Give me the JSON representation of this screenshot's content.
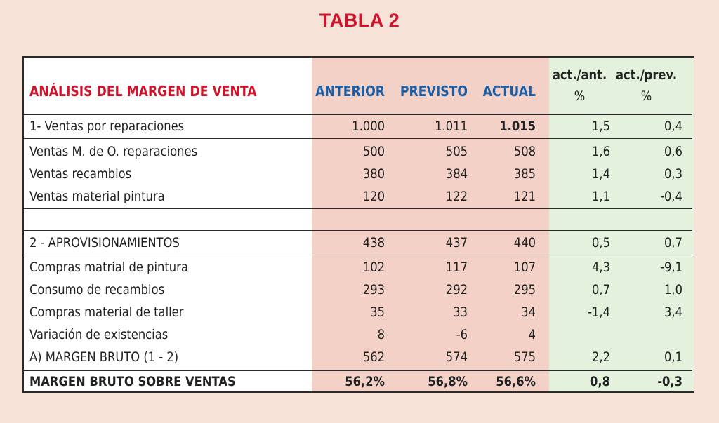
{
  "title": "TABLA 2",
  "header": {
    "label": "ANÁLISIS DEL MARGEN DE VENTA",
    "anterior": "ANTERIOR",
    "previsto": "PREVISTO",
    "actual": "ACTUAL",
    "act_ant": "act./ant.",
    "act_prev": "act./prev.",
    "pct_ant": "%",
    "pct_prev": "%"
  },
  "rows": [
    {
      "label": "1- Ventas por reparaciones",
      "anterior": "1.000",
      "previsto": "1.011",
      "actual": "1.015",
      "act_ant": "1,5",
      "act_prev": "0,4"
    },
    {
      "label": "Ventas M. de O. reparaciones",
      "anterior": "500",
      "previsto": "505",
      "actual": "508",
      "act_ant": "1,6",
      "act_prev": "0,6"
    },
    {
      "label": "Ventas recambios",
      "anterior": "380",
      "previsto": "384",
      "actual": "385",
      "act_ant": "1,4",
      "act_prev": "0,3"
    },
    {
      "label": "Ventas material pintura",
      "anterior": "120",
      "previsto": "122",
      "actual": "121",
      "act_ant": "1,1",
      "act_prev": "-0,4"
    },
    {
      "label": "2 - APROVISIONAMIENTOS",
      "anterior": "438",
      "previsto": "437",
      "actual": "440",
      "act_ant": "0,5",
      "act_prev": "0,7"
    },
    {
      "label": "Compras matrial de pintura",
      "anterior": "102",
      "previsto": "117",
      "actual": "107",
      "act_ant": "4,3",
      "act_prev": "-9,1"
    },
    {
      "label": "Consumo de recambios",
      "anterior": "293",
      "previsto": "292",
      "actual": "295",
      "act_ant": "0,7",
      "act_prev": "1,0"
    },
    {
      "label": "Compras material de taller",
      "anterior": "35",
      "previsto": "33",
      "actual": "34",
      "act_ant": "-1,4",
      "act_prev": "3,4"
    },
    {
      "label": "Variación de existencias",
      "anterior": "8",
      "previsto": "-6",
      "actual": "4",
      "act_ant": "",
      "act_prev": ""
    },
    {
      "label": "A) MARGEN BRUTO (1 - 2)",
      "anterior": "562",
      "previsto": "574",
      "actual": "575",
      "act_ant": "2,2",
      "act_prev": "0,1"
    },
    {
      "label": "MARGEN BRUTO SOBRE VENTAS",
      "anterior": "56,2%",
      "previsto": "56,8%",
      "actual": "56,6%",
      "act_ant": "0,8",
      "act_prev": "-0,3"
    }
  ],
  "colors": {
    "title": "#d0122a",
    "header_label": "#d0122a",
    "header_cols": "#1a5fa8",
    "pink_bg": "#f4d1c6",
    "green_bg": "#e4f1dc",
    "page_bg": "#f7e2d8"
  }
}
